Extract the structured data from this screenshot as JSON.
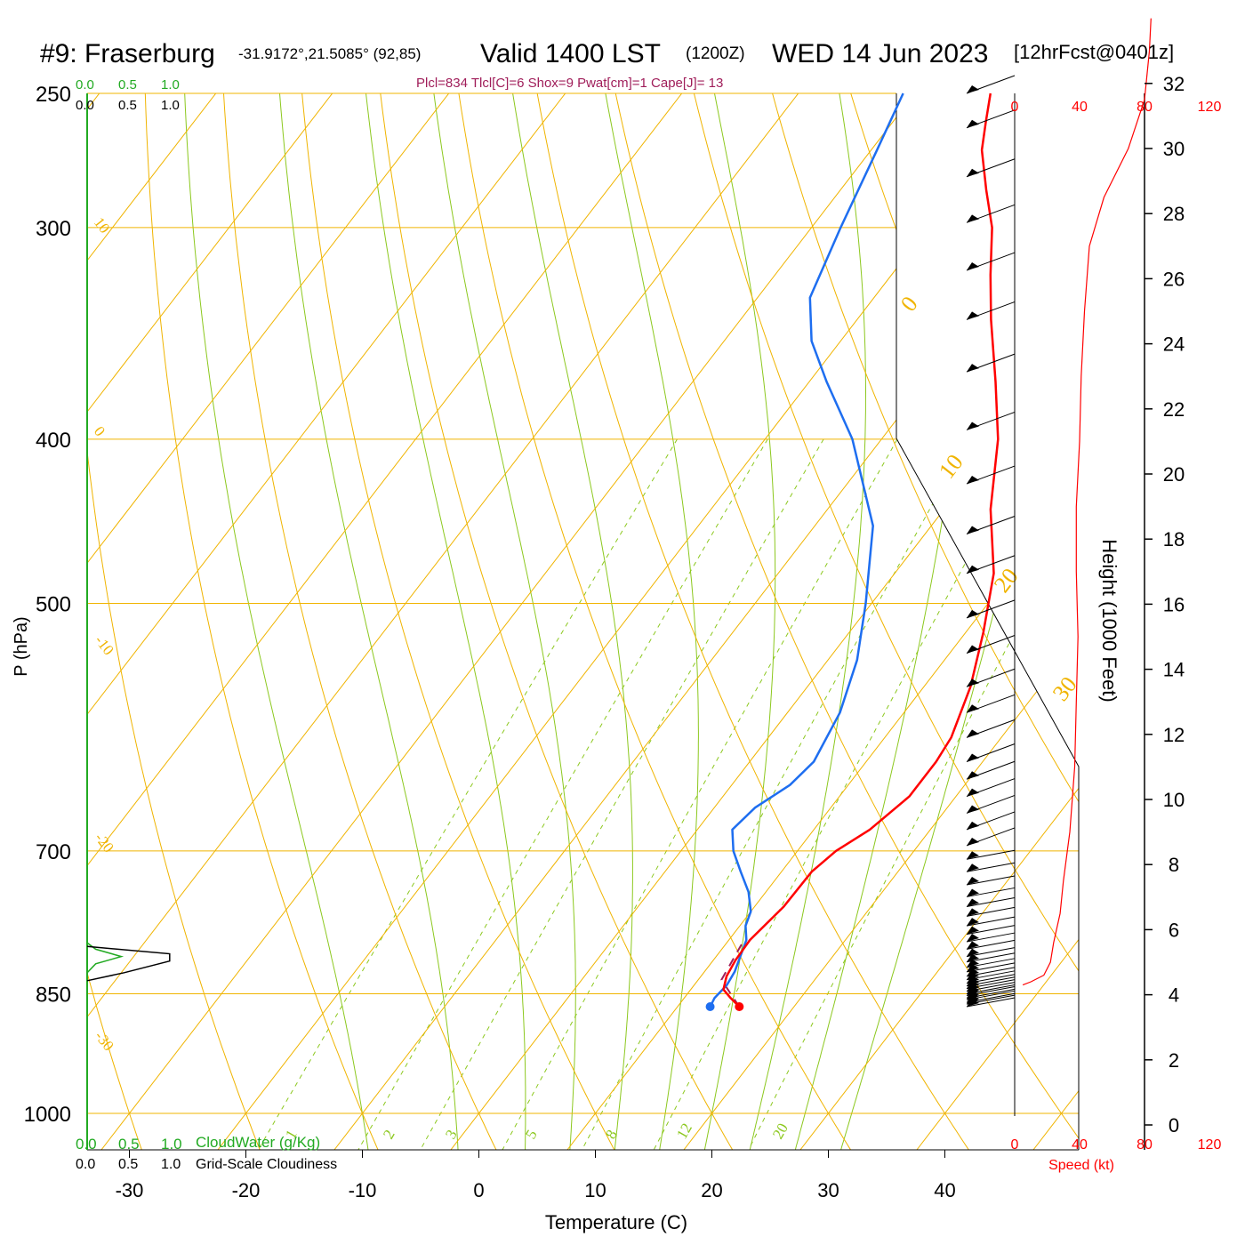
{
  "header": {
    "station": "#9: Fraserburg",
    "coords": "-31.9172°,21.5085° (92,85)",
    "valid": "Valid 1400 LST",
    "utc": "(1200Z)",
    "date": "WED 14 Jun 2023",
    "forecast": "[12hrFcst@0401z]",
    "indices": "Plcl=834 Tlcl[C]=6 Shox=9 Pwat[cm]=1 Cape[J]= 13"
  },
  "colors": {
    "temperature": "#ff0000",
    "dewpoint": "#1e6ef0",
    "isotherm": "#f0b400",
    "moist_adiabat": "#8cc81e",
    "mixing_ratio": "#8cc81e",
    "cloud_water": "#22aa22",
    "parcel": "#a01e5a",
    "indices": "#a01e5a",
    "speed": "#ff0000"
  },
  "cloud_scales": {
    "cloudwater": [
      "0.0",
      "0.5",
      "1.0"
    ],
    "cloudiness": [
      "0.0",
      "0.5",
      "1.0"
    ],
    "cloudwater_label": "CloudWater (g/Kg)",
    "cloudiness_label": "Grid-Scale Cloudiness"
  },
  "speed_scale": {
    "ticks": [
      "0",
      "40",
      "80",
      "120"
    ],
    "label": "Speed (kt)"
  },
  "chart_data": {
    "type": "line",
    "subtype": "skew-T log-P sounding",
    "xlabel": "Temperature (C)",
    "ylabel": "P (hPa)",
    "right_label": "Height (1000 Feet)",
    "x_ticks": [
      -30,
      -20,
      -10,
      0,
      10,
      20,
      30,
      40
    ],
    "pressure_ticks": [
      250,
      300,
      400,
      500,
      700,
      850,
      1000
    ],
    "height_ticks": [
      0,
      2,
      4,
      6,
      8,
      10,
      12,
      14,
      16,
      18,
      20,
      22,
      24,
      26,
      28,
      30,
      32
    ],
    "dry_adiabat_labels": [
      "10",
      "0",
      "-10",
      "-20",
      "-30"
    ],
    "isotherm_labels": [
      "0",
      "10",
      "20",
      "30"
    ],
    "mixing_ratio_labels": [
      "1",
      "2",
      "3",
      "5",
      "8",
      "12",
      "20"
    ],
    "temperature": {
      "name": "Temperature",
      "points": [
        [
          865,
          15.3
        ],
        [
          855,
          14.0
        ],
        [
          845,
          12.8
        ],
        [
          830,
          12.2
        ],
        [
          812,
          11.9
        ],
        [
          790,
          11.8
        ],
        [
          775,
          12.1
        ],
        [
          755,
          12.5
        ],
        [
          720,
          12.6
        ],
        [
          700,
          13.3
        ],
        [
          680,
          14.8
        ],
        [
          650,
          16.0
        ],
        [
          620,
          16.0
        ],
        [
          600,
          15.7
        ],
        [
          560,
          14.0
        ],
        [
          520,
          11.5
        ],
        [
          480,
          8.5
        ],
        [
          440,
          4.0
        ],
        [
          400,
          0.0
        ],
        [
          370,
          -4.0
        ],
        [
          340,
          -8.5
        ],
        [
          320,
          -11.5
        ],
        [
          300,
          -14.5
        ],
        [
          285,
          -17.5
        ],
        [
          270,
          -20.5
        ],
        [
          260,
          -22.0
        ],
        [
          250,
          -23.5
        ]
      ]
    },
    "dewpoint": {
      "name": "Dewpoint",
      "points": [
        [
          865,
          12.8
        ],
        [
          855,
          12.6
        ],
        [
          840,
          12.8
        ],
        [
          825,
          12.6
        ],
        [
          790,
          11.5
        ],
        [
          775,
          10.5
        ],
        [
          760,
          10.0
        ],
        [
          740,
          8.5
        ],
        [
          720,
          6.5
        ],
        [
          700,
          4.5
        ],
        [
          680,
          3.0
        ],
        [
          660,
          3.5
        ],
        [
          640,
          5.0
        ],
        [
          620,
          5.5
        ],
        [
          580,
          4.5
        ],
        [
          540,
          2.5
        ],
        [
          500,
          -0.5
        ],
        [
          450,
          -5.0
        ],
        [
          400,
          -12.5
        ],
        [
          370,
          -18.5
        ],
        [
          350,
          -22.5
        ],
        [
          330,
          -25.5
        ],
        [
          300,
          -27.5
        ],
        [
          270,
          -29.5
        ],
        [
          250,
          -31.0
        ]
      ]
    },
    "parcel": {
      "name": "Parcel",
      "points": [
        [
          865,
          15.3
        ],
        [
          834,
          12.0
        ],
        [
          790,
          11.3
        ]
      ]
    },
    "speed_profile": {
      "name": "Speed (kt)",
      "points": [
        [
          4.3,
          5
        ],
        [
          4.4,
          10
        ],
        [
          4.6,
          18
        ],
        [
          5.0,
          22
        ],
        [
          5.6,
          24
        ],
        [
          6.5,
          28
        ],
        [
          7.5,
          30
        ],
        [
          9.0,
          34
        ],
        [
          11.0,
          37
        ],
        [
          13.0,
          38
        ],
        [
          15.0,
          39
        ],
        [
          17.0,
          38
        ],
        [
          19.0,
          38
        ],
        [
          21.0,
          40
        ],
        [
          23.0,
          41
        ],
        [
          25.0,
          43
        ],
        [
          27.0,
          46
        ],
        [
          28.5,
          55
        ],
        [
          30.0,
          70
        ],
        [
          31.5,
          80
        ],
        [
          33.0,
          83
        ],
        [
          34.0,
          84
        ]
      ]
    },
    "cloudwater_profile": {
      "name": "CloudWater (g/Kg)",
      "points": [
        [
          793,
          0.0
        ],
        [
          800,
          0.1
        ],
        [
          808,
          0.4
        ],
        [
          816,
          0.1
        ],
        [
          826,
          0.0
        ]
      ]
    },
    "cloudiness_profile": {
      "name": "Grid-Scale Cloudiness",
      "points": [
        [
          797,
          0.0
        ],
        [
          805,
          1.45
        ],
        [
          813,
          1.45
        ],
        [
          826,
          0.65
        ],
        [
          835,
          0.0
        ]
      ]
    },
    "wind_barbs_hpa": [
      865,
      862,
      860,
      857,
      855,
      852,
      850,
      847,
      844,
      841,
      838,
      834,
      830,
      825,
      820,
      814,
      808,
      800,
      792,
      784,
      775,
      765,
      755,
      745,
      733,
      720,
      708,
      695,
      680,
      665,
      650,
      635,
      620,
      600,
      580,
      560,
      535,
      510,
      480,
      455,
      425,
      395,
      365,
      340,
      318,
      298,
      280,
      262,
      250
    ]
  }
}
